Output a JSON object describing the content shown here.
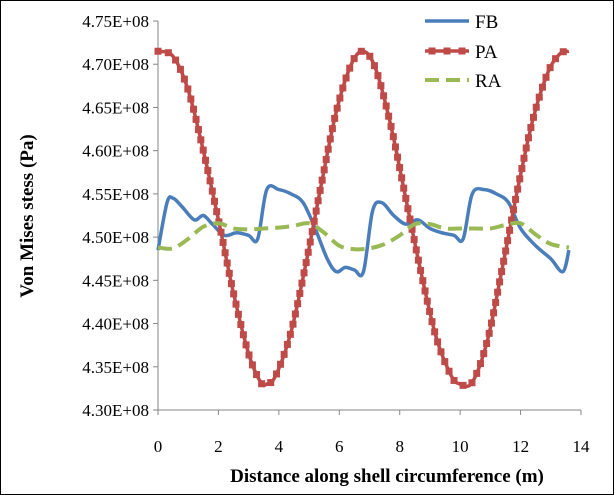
{
  "chart_data": {
    "type": "line",
    "title": "",
    "xlabel": "Distance along shell circumference (m)",
    "ylabel": "Von Mises stess (Pa)",
    "xlim": [
      0,
      14
    ],
    "ylim": [
      430000000,
      475000000
    ],
    "x_ticks": [
      "0",
      "2",
      "4",
      "6",
      "8",
      "10",
      "12",
      "14"
    ],
    "y_ticks": [
      "4.30E+08",
      "4.35E+08",
      "4.40E+08",
      "4.45E+08",
      "4.50E+08",
      "4.55E+08",
      "4.60E+08",
      "4.65E+08",
      "4.70E+08",
      "4.75E+08"
    ],
    "grid": false,
    "legend_position": "top-right",
    "series": [
      {
        "name": "FB",
        "color": "#4a7ebb",
        "style": "solid",
        "points": [
          [
            0,
            448500000
          ],
          [
            0.3,
            454000000
          ],
          [
            0.5,
            454500000
          ],
          [
            0.8,
            453500000
          ],
          [
            1.2,
            452000000
          ],
          [
            1.5,
            452500000
          ],
          [
            1.8,
            451500000
          ],
          [
            2.2,
            450200000
          ],
          [
            2.6,
            450500000
          ],
          [
            3.0,
            450200000
          ],
          [
            3.3,
            449800000
          ],
          [
            3.6,
            455500000
          ],
          [
            4.0,
            455500000
          ],
          [
            4.4,
            455000000
          ],
          [
            4.8,
            454000000
          ],
          [
            5.2,
            451000000
          ],
          [
            5.6,
            447500000
          ],
          [
            5.9,
            446000000
          ],
          [
            6.2,
            446500000
          ],
          [
            6.5,
            446200000
          ],
          [
            6.8,
            446000000
          ],
          [
            7.1,
            453000000
          ],
          [
            7.4,
            454000000
          ],
          [
            7.8,
            452500000
          ],
          [
            8.2,
            451500000
          ],
          [
            8.6,
            452000000
          ],
          [
            9.0,
            451000000
          ],
          [
            9.4,
            450500000
          ],
          [
            9.8,
            450200000
          ],
          [
            10.1,
            449800000
          ],
          [
            10.4,
            455000000
          ],
          [
            10.8,
            455500000
          ],
          [
            11.2,
            455000000
          ],
          [
            11.6,
            454000000
          ],
          [
            12.0,
            451000000
          ],
          [
            12.5,
            449000000
          ],
          [
            13.0,
            447500000
          ],
          [
            13.4,
            446000000
          ],
          [
            13.6,
            448500000
          ]
        ]
      },
      {
        "name": "PA",
        "color": "#be4b48",
        "style": "solid-square-markers",
        "points": [
          [
            0,
            471500000
          ],
          [
            0.5,
            470900000
          ],
          [
            1.0,
            467000000
          ],
          [
            1.5,
            460000000
          ],
          [
            2.0,
            452000000
          ],
          [
            2.5,
            443500000
          ],
          [
            3.0,
            436500000
          ],
          [
            3.4,
            433200000
          ],
          [
            3.6,
            433000000
          ],
          [
            3.9,
            434000000
          ],
          [
            4.4,
            439000000
          ],
          [
            4.9,
            447000000
          ],
          [
            5.4,
            456000000
          ],
          [
            5.9,
            464500000
          ],
          [
            6.4,
            470000000
          ],
          [
            6.8,
            471500000
          ],
          [
            7.2,
            469500000
          ],
          [
            7.7,
            463000000
          ],
          [
            8.2,
            454500000
          ],
          [
            8.7,
            446000000
          ],
          [
            9.2,
            438500000
          ],
          [
            9.7,
            434000000
          ],
          [
            10.0,
            433000000
          ],
          [
            10.4,
            433200000
          ],
          [
            10.9,
            438000000
          ],
          [
            11.4,
            446500000
          ],
          [
            11.9,
            455500000
          ],
          [
            12.4,
            463500000
          ],
          [
            12.9,
            469000000
          ],
          [
            13.3,
            471200000
          ],
          [
            13.6,
            471500000
          ]
        ]
      },
      {
        "name": "RA",
        "color": "#98b954",
        "style": "dashed",
        "points": [
          [
            0,
            448800000
          ],
          [
            0.5,
            448700000
          ],
          [
            1.0,
            449800000
          ],
          [
            1.5,
            451200000
          ],
          [
            2.0,
            451600000
          ],
          [
            2.5,
            451000000
          ],
          [
            3.0,
            450900000
          ],
          [
            3.5,
            451000000
          ],
          [
            4.0,
            451100000
          ],
          [
            4.5,
            451300000
          ],
          [
            5.0,
            451600000
          ],
          [
            5.5,
            450500000
          ],
          [
            6.0,
            449000000
          ],
          [
            6.5,
            448600000
          ],
          [
            7.0,
            448700000
          ],
          [
            7.5,
            449200000
          ],
          [
            8.0,
            450200000
          ],
          [
            8.5,
            451500000
          ],
          [
            9.0,
            451500000
          ],
          [
            9.5,
            451000000
          ],
          [
            10.0,
            451000000
          ],
          [
            10.5,
            451000000
          ],
          [
            11.0,
            451000000
          ],
          [
            11.5,
            451400000
          ],
          [
            12.0,
            451600000
          ],
          [
            12.5,
            450300000
          ],
          [
            13.0,
            449200000
          ],
          [
            13.6,
            448800000
          ]
        ]
      }
    ]
  }
}
